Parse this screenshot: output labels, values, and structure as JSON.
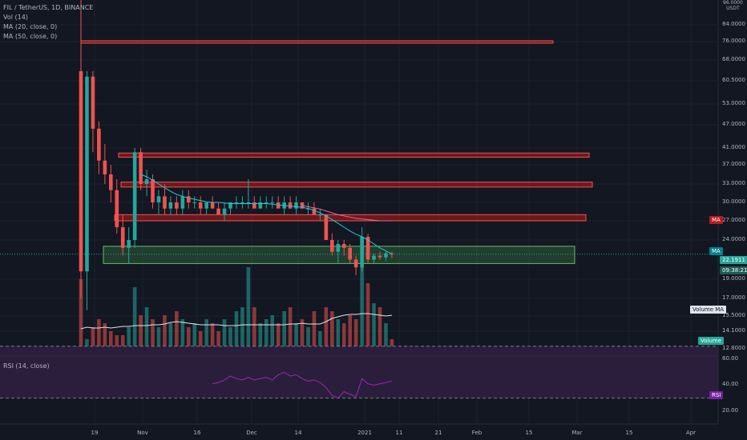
{
  "header": {
    "legend": [
      "FIL / TetherUS, 1D, BINANCE",
      "Vol (14)",
      "MA (20, close, 0)",
      "MA (50, close, 0)"
    ],
    "top_right": [
      "96.0000",
      "USDT"
    ]
  },
  "price_axis": {
    "ticks": [
      "84.0000",
      "76.0000",
      "68.0000",
      "60.5000",
      "53.0000",
      "47.0000",
      "41.0000",
      "37.0000",
      "33.0000",
      "30.0000",
      "27.0000",
      "24.0000",
      "19.0000",
      "17.0000",
      "15.5000",
      "14.1000",
      "12.8000"
    ],
    "tags": {
      "ma_upper": "MA",
      "ma_lower": "MA",
      "price": "22.1911",
      "countdown": "09:38:21",
      "volume_ma": "Volume MA",
      "volume": "Volume",
      "rsi": "RSI"
    }
  },
  "rsi_pane": {
    "title": "RSI (14, close)",
    "ticks": [
      "60.00",
      "40.00",
      "20.00"
    ]
  },
  "time_axis": {
    "labels": [
      "19",
      "Nov",
      "16",
      "Dec",
      "14",
      "2021",
      "11",
      "21",
      "Feb",
      "15",
      "Mar",
      "15",
      "Apr"
    ]
  },
  "colors": {
    "background": "#131722",
    "up": "#26a69a",
    "down": "#ef5350",
    "resistance": "#b71c1c",
    "support": "#2e7d32",
    "ma20": "#26c6da",
    "ma50": "#f06292",
    "rsi_band": "#2a1e3c",
    "rsi_line": "#9c27b0"
  },
  "chart_data": {
    "type": "candlestick",
    "symbol": "FIL / TetherUS",
    "interval": "1D",
    "exchange": "BINANCE",
    "last_price": 22.1911,
    "candles": [
      [
        64,
        98,
        17,
        20
      ],
      [
        20,
        64,
        16,
        62
      ],
      [
        62,
        64,
        40,
        46
      ],
      [
        46,
        48,
        35,
        38
      ],
      [
        38,
        42,
        33,
        35
      ],
      [
        35,
        37,
        30,
        32
      ],
      [
        32,
        34,
        25,
        26
      ],
      [
        26,
        28,
        22,
        23
      ],
      [
        23,
        26,
        21,
        24
      ],
      [
        24,
        41,
        23,
        40
      ],
      [
        40,
        41,
        32,
        33
      ],
      [
        33,
        36,
        31,
        34
      ],
      [
        34,
        35,
        29,
        30
      ],
      [
        30,
        32,
        28,
        31
      ],
      [
        31,
        33,
        28,
        29
      ],
      [
        29,
        31,
        28,
        30
      ],
      [
        30,
        31,
        28,
        29
      ],
      [
        29,
        32,
        28,
        31
      ],
      [
        31,
        32,
        29,
        30
      ],
      [
        30,
        31,
        29,
        30
      ],
      [
        30,
        31,
        28,
        29
      ],
      [
        29,
        30,
        28,
        30
      ],
      [
        30,
        31,
        29,
        29
      ],
      [
        29,
        30,
        28,
        28
      ],
      [
        28,
        30,
        27,
        29
      ],
      [
        29,
        30,
        28,
        30
      ],
      [
        30,
        31,
        29,
        30
      ],
      [
        30,
        31,
        29,
        30
      ],
      [
        30,
        34,
        29,
        30
      ],
      [
        30,
        31,
        29,
        29
      ],
      [
        29,
        31,
        29,
        30
      ],
      [
        30,
        31,
        29,
        30
      ],
      [
        30,
        31,
        29,
        30
      ],
      [
        30,
        31,
        29,
        29
      ],
      [
        29,
        31,
        28,
        30
      ],
      [
        30,
        31,
        29,
        29
      ],
      [
        29,
        31,
        28,
        30
      ],
      [
        30,
        30,
        29,
        29
      ],
      [
        29,
        30,
        28,
        29
      ],
      [
        29,
        30,
        28,
        28
      ],
      [
        28,
        29,
        27,
        28
      ],
      [
        28,
        28,
        24,
        24
      ],
      [
        24,
        25,
        22,
        22.5
      ],
      [
        22.5,
        24,
        21,
        23.5
      ],
      [
        23.5,
        24,
        22,
        23
      ],
      [
        23,
        23.5,
        21,
        21.5
      ],
      [
        21.5,
        22,
        19.5,
        20.5
      ],
      [
        20.5,
        26,
        20,
        24.5
      ],
      [
        24.5,
        25,
        21,
        21.5
      ],
      [
        21.5,
        22.3,
        21,
        22
      ],
      [
        22,
        22.5,
        21.5,
        21.8
      ],
      [
        21.8,
        22.5,
        21.3,
        22.3
      ],
      [
        22.3,
        22.5,
        21.7,
        22.19
      ]
    ],
    "volume": [
      95,
      20,
      35,
      45,
      40,
      30,
      25,
      25,
      35,
      85,
      50,
      60,
      45,
      35,
      50,
      40,
      55,
      45,
      35,
      40,
      30,
      45,
      40,
      30,
      45,
      35,
      55,
      60,
      110,
      60,
      40,
      45,
      50,
      40,
      55,
      60,
      40,
      45,
      35,
      55,
      30,
      60,
      55,
      45,
      40,
      50,
      45,
      110,
      90,
      65,
      60,
      40,
      20
    ],
    "volume_ma": [
      33,
      35,
      34,
      34,
      35,
      34,
      35,
      36,
      36,
      37,
      37,
      37,
      38,
      38,
      39,
      41,
      42,
      41,
      40,
      39,
      38,
      38,
      38,
      38,
      37,
      37,
      37,
      38,
      38,
      38,
      38,
      38,
      38,
      38,
      38,
      39,
      39,
      40,
      39,
      39,
      39,
      42,
      46,
      48,
      50,
      51,
      51,
      52,
      52,
      51,
      50,
      49,
      50
    ],
    "ma20": [
      null,
      null,
      null,
      null,
      null,
      null,
      null,
      null,
      null,
      null,
      35,
      34.5,
      33.8,
      33,
      32.4,
      31.8,
      31.3,
      31,
      30.7,
      30.5,
      30.3,
      30.1,
      30,
      30,
      29.9,
      29.8,
      29.8,
      29.8,
      29.8,
      29.8,
      29.8,
      29.8,
      29.7,
      29.6,
      29.5,
      29.4,
      29.3,
      29.2,
      29,
      28.7,
      28.3,
      27.8,
      27.2,
      26.6,
      26,
      25.4,
      24.9,
      24.5,
      24,
      23.5,
      23,
      22.6,
      22.2
    ],
    "ma50": [
      null,
      null,
      null,
      null,
      null,
      null,
      null,
      null,
      null,
      null,
      null,
      null,
      null,
      null,
      null,
      null,
      null,
      null,
      null,
      null,
      null,
      null,
      null,
      null,
      null,
      null,
      null,
      null,
      null,
      null,
      null,
      null,
      null,
      null,
      null,
      null,
      null,
      29.5,
      29.3,
      29.1,
      28.9,
      28.6,
      28.3,
      28,
      27.8,
      27.6,
      27.4,
      27.3,
      27.2,
      27.1,
      27,
      27,
      27
    ],
    "rsi": [
      null,
      null,
      null,
      null,
      null,
      null,
      null,
      null,
      null,
      null,
      null,
      null,
      null,
      null,
      null,
      null,
      null,
      null,
      null,
      null,
      null,
      null,
      41,
      42,
      44,
      47,
      45,
      44,
      46,
      44,
      45,
      46,
      44,
      48,
      50,
      47,
      48,
      45,
      43,
      44,
      42,
      38,
      32,
      30,
      35,
      33,
      31,
      45,
      41,
      40,
      41,
      42,
      43
    ],
    "zones": [
      {
        "kind": "resistance",
        "low": 75.6,
        "high": 76.4
      },
      {
        "kind": "resistance",
        "low": 38.8,
        "high": 39.8
      },
      {
        "kind": "resistance",
        "low": 32.5,
        "high": 33.4
      },
      {
        "kind": "resistance",
        "low": 27.0,
        "high": 28.0
      },
      {
        "kind": "support",
        "low": 21.0,
        "high": 23.2
      }
    ],
    "rsi_levels": [
      70,
      30
    ]
  }
}
